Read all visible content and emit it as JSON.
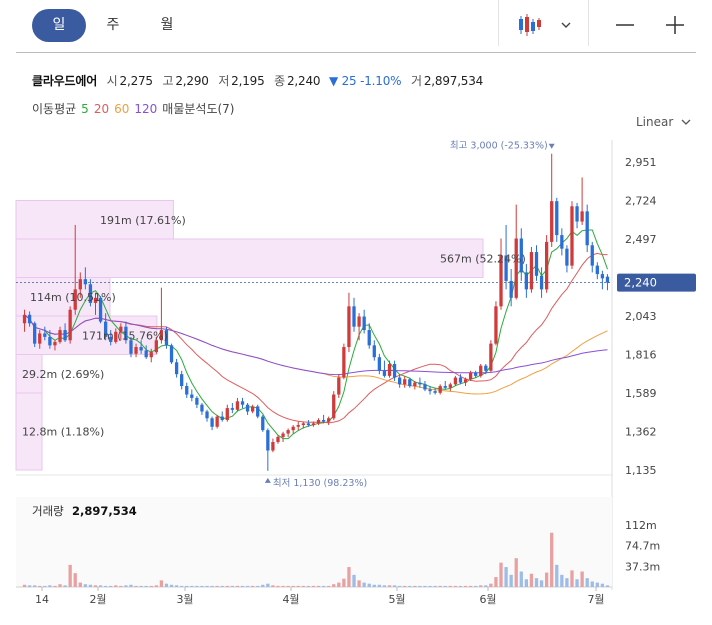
{
  "period_tabs": [
    {
      "label": "일",
      "active": true
    },
    {
      "label": "주",
      "active": false
    },
    {
      "label": "월",
      "active": false
    }
  ],
  "stock": {
    "name": "클라우드에어",
    "open_label": "시",
    "open": "2,275",
    "high_label": "고",
    "high": "2,290",
    "low_label": "저",
    "low": "2,195",
    "close_label": "종",
    "close": "2,240",
    "change": "▼ 25 -1.10%",
    "volume_label": "거",
    "volume": "2,897,534"
  },
  "ma": {
    "label": "이동평균",
    "periods": [
      {
        "value": "5",
        "color": "#2bab3a"
      },
      {
        "value": "20",
        "color": "#e05c5c"
      },
      {
        "value": "60",
        "color": "#f0a040"
      },
      {
        "value": "120",
        "color": "#8a4fd8"
      }
    ],
    "vp_label": "매물분석도(7)"
  },
  "scale_label": "Linear",
  "colors": {
    "up": "#d13a3a",
    "down": "#2a6fd6",
    "accent": "#3a5ba0",
    "vp_fill": "#f6e6f8",
    "vp_stroke": "#e9c6ee",
    "marker": "#6a7fb8"
  },
  "chart_data": {
    "type": "candlestick",
    "yticks": [
      "2,951",
      "2,724",
      "2,497",
      "2,043",
      "1,816",
      "1,589",
      "1,362",
      "1,135"
    ],
    "current_price": "2,240",
    "xticks": [
      "14",
      "2월",
      "3월",
      "4월",
      "5월",
      "6월",
      "7월"
    ],
    "high_marker": "최고 3,000 (-25.33%)",
    "low_marker": "최저 1,130 (98.23%)",
    "volume_profile": [
      {
        "label": "191m (17.61%)",
        "low": 2497,
        "high": 2724,
        "pct": 17.61
      },
      {
        "label": "567m (52.24%)",
        "low": 2270,
        "high": 2497,
        "pct": 52.24
      },
      {
        "label": "114m (10.51%)",
        "low": 2043,
        "high": 2270,
        "pct": 10.51
      },
      {
        "label": "171m (15.76%)",
        "low": 1816,
        "high": 2043,
        "pct": 15.76
      },
      {
        "label": "29.2m (2.69%)",
        "low": 1589,
        "high": 1816,
        "pct": 2.69
      },
      {
        "label": "12.8m (1.18%)",
        "low": 1135,
        "high": 1589,
        "pct": 1.18
      }
    ],
    "volume": {
      "label": "거래량",
      "value": "2,897,534",
      "ticks": [
        "112m",
        "74.7m",
        "37.3m"
      ]
    },
    "candles": [
      [
        2000,
        2080,
        1950,
        2050
      ],
      [
        2050,
        2070,
        1980,
        2000
      ],
      [
        2000,
        2010,
        1860,
        1880
      ],
      [
        1880,
        1960,
        1850,
        1940
      ],
      [
        1940,
        1980,
        1900,
        1920
      ],
      [
        1920,
        1960,
        1850,
        1870
      ],
      [
        1870,
        1900,
        1840,
        1890
      ],
      [
        1890,
        1980,
        1880,
        1960
      ],
      [
        1960,
        2000,
        1890,
        1900
      ],
      [
        1900,
        2100,
        1880,
        2080
      ],
      [
        2080,
        2580,
        2050,
        2200
      ],
      [
        2200,
        2300,
        2150,
        2260
      ],
      [
        2260,
        2330,
        2200,
        2230
      ],
      [
        2230,
        2260,
        2100,
        2120
      ],
      [
        2120,
        2180,
        2050,
        2150
      ],
      [
        2150,
        2160,
        2000,
        2010
      ],
      [
        2010,
        2060,
        1900,
        1920
      ],
      [
        1920,
        1960,
        1870,
        1890
      ],
      [
        1890,
        1970,
        1880,
        1950
      ],
      [
        1950,
        2000,
        1900,
        1980
      ],
      [
        1980,
        2010,
        1880,
        1900
      ],
      [
        1900,
        1920,
        1800,
        1820
      ],
      [
        1820,
        1880,
        1800,
        1860
      ],
      [
        1860,
        1900,
        1820,
        1840
      ],
      [
        1840,
        1870,
        1790,
        1800
      ],
      [
        1800,
        1850,
        1770,
        1830
      ],
      [
        1830,
        1920,
        1820,
        1900
      ],
      [
        1900,
        2210,
        1880,
        1960
      ],
      [
        1960,
        1980,
        1850,
        1870
      ],
      [
        1870,
        1880,
        1760,
        1770
      ],
      [
        1770,
        1790,
        1680,
        1700
      ],
      [
        1700,
        1720,
        1610,
        1630
      ],
      [
        1630,
        1650,
        1560,
        1580
      ],
      [
        1580,
        1610,
        1540,
        1560
      ],
      [
        1560,
        1570,
        1500,
        1520
      ],
      [
        1520,
        1530,
        1460,
        1480
      ],
      [
        1480,
        1490,
        1420,
        1440
      ],
      [
        1440,
        1450,
        1370,
        1390
      ],
      [
        1390,
        1460,
        1380,
        1450
      ],
      [
        1450,
        1480,
        1420,
        1430
      ],
      [
        1430,
        1520,
        1420,
        1500
      ],
      [
        1500,
        1530,
        1470,
        1490
      ],
      [
        1490,
        1560,
        1480,
        1540
      ],
      [
        1540,
        1560,
        1500,
        1520
      ],
      [
        1520,
        1530,
        1460,
        1480
      ],
      [
        1480,
        1520,
        1470,
        1510
      ],
      [
        1510,
        1520,
        1440,
        1450
      ],
      [
        1450,
        1460,
        1360,
        1370
      ],
      [
        1370,
        1380,
        1130,
        1250
      ],
      [
        1250,
        1320,
        1240,
        1300
      ],
      [
        1300,
        1340,
        1290,
        1330
      ],
      [
        1330,
        1360,
        1300,
        1350
      ],
      [
        1350,
        1380,
        1330,
        1370
      ],
      [
        1370,
        1400,
        1350,
        1390
      ],
      [
        1390,
        1420,
        1370,
        1400
      ],
      [
        1400,
        1420,
        1380,
        1410
      ],
      [
        1410,
        1430,
        1390,
        1400
      ],
      [
        1400,
        1420,
        1390,
        1410
      ],
      [
        1410,
        1440,
        1400,
        1430
      ],
      [
        1430,
        1460,
        1410,
        1420
      ],
      [
        1420,
        1450,
        1400,
        1440
      ],
      [
        1440,
        1600,
        1430,
        1580
      ],
      [
        1580,
        1700,
        1560,
        1680
      ],
      [
        1680,
        1880,
        1670,
        1860
      ],
      [
        1860,
        2180,
        1830,
        2100
      ],
      [
        2100,
        2150,
        1950,
        1980
      ],
      [
        1980,
        2060,
        1900,
        2040
      ],
      [
        2040,
        2080,
        1940,
        1960
      ],
      [
        1960,
        2000,
        1850,
        1870
      ],
      [
        1870,
        1900,
        1780,
        1800
      ],
      [
        1800,
        1820,
        1700,
        1720
      ],
      [
        1720,
        1780,
        1680,
        1690
      ],
      [
        1690,
        1780,
        1680,
        1760
      ],
      [
        1760,
        1780,
        1660,
        1680
      ],
      [
        1680,
        1700,
        1620,
        1640
      ],
      [
        1640,
        1690,
        1620,
        1670
      ],
      [
        1670,
        1680,
        1620,
        1630
      ],
      [
        1630,
        1660,
        1610,
        1650
      ],
      [
        1650,
        1680,
        1620,
        1640
      ],
      [
        1640,
        1660,
        1600,
        1610
      ],
      [
        1610,
        1630,
        1580,
        1600
      ],
      [
        1600,
        1620,
        1580,
        1590
      ],
      [
        1590,
        1640,
        1580,
        1630
      ],
      [
        1630,
        1660,
        1610,
        1620
      ],
      [
        1620,
        1650,
        1600,
        1640
      ],
      [
        1640,
        1690,
        1630,
        1680
      ],
      [
        1680,
        1700,
        1640,
        1650
      ],
      [
        1650,
        1680,
        1630,
        1670
      ],
      [
        1670,
        1720,
        1660,
        1710
      ],
      [
        1710,
        1720,
        1680,
        1690
      ],
      [
        1690,
        1760,
        1680,
        1750
      ],
      [
        1750,
        1760,
        1700,
        1720
      ],
      [
        1720,
        1900,
        1710,
        1880
      ],
      [
        1880,
        2130,
        1870,
        2100
      ],
      [
        2100,
        2500,
        2080,
        2400
      ],
      [
        2400,
        2580,
        2200,
        2250
      ],
      [
        2250,
        2320,
        2100,
        2150
      ],
      [
        2150,
        2700,
        2140,
        2500
      ],
      [
        2500,
        2560,
        2250,
        2300
      ],
      [
        2300,
        2350,
        2150,
        2200
      ],
      [
        2200,
        2450,
        2180,
        2420
      ],
      [
        2420,
        2460,
        2250,
        2280
      ],
      [
        2280,
        2330,
        2150,
        2200
      ],
      [
        2200,
        2520,
        2180,
        2480
      ],
      [
        2480,
        3000,
        2450,
        2720
      ],
      [
        2720,
        2740,
        2480,
        2520
      ],
      [
        2520,
        2560,
        2400,
        2440
      ],
      [
        2440,
        2460,
        2300,
        2340
      ],
      [
        2340,
        2720,
        2320,
        2690
      ],
      [
        2690,
        2710,
        2560,
        2600
      ],
      [
        2600,
        2860,
        2580,
        2660
      ],
      [
        2660,
        2700,
        2420,
        2460
      ],
      [
        2460,
        2480,
        2300,
        2340
      ],
      [
        2340,
        2360,
        2260,
        2290
      ],
      [
        2290,
        2310,
        2200,
        2265
      ],
      [
        2275,
        2290,
        2195,
        2240
      ]
    ],
    "volumes": [
      4,
      3,
      3,
      2,
      2,
      3,
      2,
      5,
      3,
      40,
      25,
      8,
      5,
      4,
      3,
      3,
      2,
      2,
      3,
      2,
      3,
      4,
      2,
      2,
      2,
      2,
      3,
      12,
      6,
      4,
      3,
      2,
      2,
      2,
      2,
      2,
      2,
      2,
      2,
      2,
      2,
      2,
      2,
      2,
      2,
      2,
      2,
      4,
      6,
      3,
      2,
      2,
      2,
      2,
      2,
      2,
      2,
      2,
      2,
      2,
      2,
      5,
      8,
      15,
      36,
      22,
      12,
      8,
      6,
      4,
      4,
      3,
      3,
      3,
      2,
      2,
      2,
      2,
      2,
      2,
      2,
      2,
      2,
      2,
      2,
      2,
      2,
      2,
      2,
      2,
      3,
      3,
      6,
      18,
      44,
      36,
      22,
      52,
      28,
      14,
      24,
      16,
      12,
      26,
      98,
      40,
      22,
      16,
      30,
      14,
      28,
      16,
      10,
      8,
      6,
      3
    ]
  }
}
